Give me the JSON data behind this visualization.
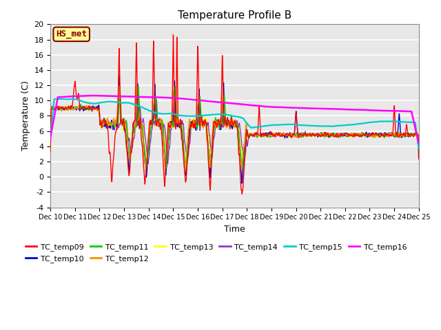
{
  "title": "Temperature Profile B",
  "xlabel": "Time",
  "ylabel": "Temperature (C)",
  "ylim": [
    -4,
    20
  ],
  "xlim": [
    0,
    15
  ],
  "annotation_text": "HS_met",
  "annotation_color": "#8B0000",
  "annotation_bg": "#FFFF99",
  "series_colors": {
    "TC_temp09": "#FF0000",
    "TC_temp10": "#0000CD",
    "TC_temp11": "#00CC00",
    "TC_temp12": "#FF8C00",
    "TC_temp13": "#FFFF00",
    "TC_temp14": "#9932CC",
    "TC_temp15": "#00CCCC",
    "TC_temp16": "#FF00FF"
  },
  "xtick_labels": [
    "Dec 10",
    "Dec 11",
    "Dec 12",
    "Dec 13",
    "Dec 14",
    "Dec 15",
    "Dec 16",
    "Dec 17",
    "Dec 18",
    "Dec 19",
    "Dec 20",
    "Dec 21",
    "Dec 22",
    "Dec 23",
    "Dec 24",
    "Dec 25"
  ],
  "bg_color": "#E8E8E8",
  "grid_color": "#FFFFFF"
}
